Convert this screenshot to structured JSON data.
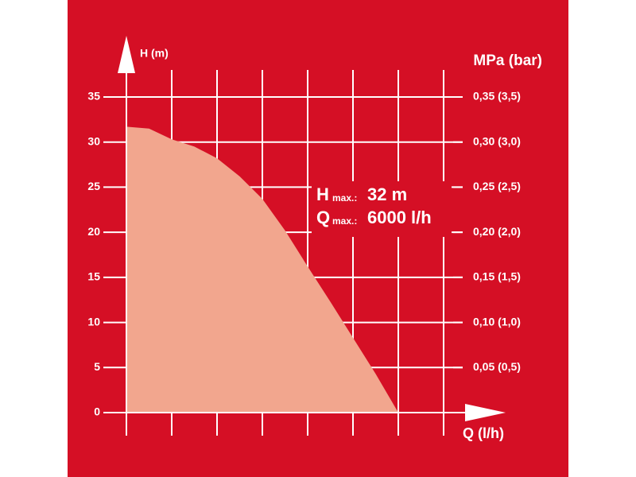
{
  "chart_data": {
    "type": "area",
    "y_label": "H (m)",
    "y2_label": "MPa (bar)",
    "x_label": "Q (l/h)",
    "x": [
      0,
      500,
      1000,
      1500,
      2000,
      2500,
      3000,
      3500,
      4000,
      4500,
      5000,
      5500,
      6000
    ],
    "series": [
      {
        "color": "#f2a68e",
        "values": [
          31.7,
          31.5,
          30.3,
          29.5,
          28.2,
          26.2,
          23.7,
          20.2,
          16.2,
          12.3,
          8.3,
          4.3,
          0
        ]
      }
    ],
    "xlim": [
      0,
      7000
    ],
    "xticks": [
      0,
      1000,
      2000,
      3000,
      4000,
      5000,
      6000,
      7000
    ],
    "ylim": [
      0,
      35
    ],
    "yticks": [
      0,
      5,
      10,
      15,
      20,
      25,
      30,
      35
    ],
    "y2lim": [
      0,
      0.35
    ],
    "y2ticks": [
      {
        "value": 0.05,
        "label": "0,05 (0,5)"
      },
      {
        "value": 0.1,
        "label": "0,10 (1,0)"
      },
      {
        "value": 0.15,
        "label": "0,15 (1,5)"
      },
      {
        "value": 0.2,
        "label": "0,20 (2,0)"
      },
      {
        "value": 0.25,
        "label": "0,25 (2,5)"
      },
      {
        "value": 0.3,
        "label": "0,30 (3,0)"
      },
      {
        "value": 0.35,
        "label": "0,35 (3,5)"
      }
    ],
    "background": "#d50f25",
    "grid": true,
    "annotations": [
      {
        "symbol": "H",
        "sub": "max.:",
        "value": "32 m"
      },
      {
        "symbol": "Q",
        "sub": "max.:",
        "value": "6000 l/h"
      }
    ]
  }
}
